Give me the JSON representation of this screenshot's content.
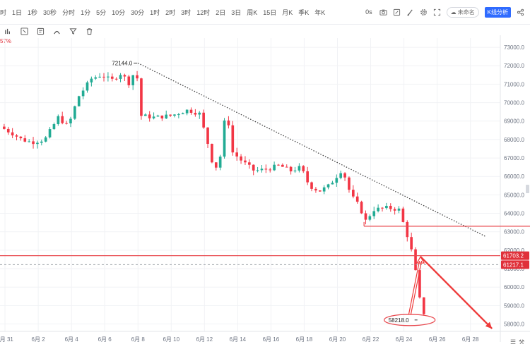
{
  "toolbar": {
    "intervals": [
      "时",
      "1日",
      "1秒",
      "30秒",
      "分时",
      "1分",
      "5分",
      "10分",
      "30分",
      "1时",
      "2时",
      "3时",
      "12时",
      "2日",
      "3日",
      "周K",
      "15日",
      "月K",
      "季K",
      "年K"
    ],
    "latency": "0s",
    "template_label": "未命名",
    "analysis_button": "K线分析",
    "icons": [
      "camera-icon",
      "edit-square-icon",
      "brush-icon",
      "gear-icon",
      "expand-icon"
    ]
  },
  "drawing_tools": {
    "icons": [
      "bars-icon",
      "ruler-icon",
      "note-icon",
      "magnet-icon",
      "filter-icon",
      "trash-icon"
    ]
  },
  "indicator_text": "57%",
  "chart_data": {
    "type": "candlestick",
    "y_axis": {
      "ticks": [
        73000,
        72000,
        71000,
        70000,
        69000,
        68000,
        67000,
        66000,
        65000,
        64000,
        63000,
        62000,
        61000,
        60000,
        59000,
        58000
      ],
      "tick_labels": [
        "73000.0",
        "72000.0",
        "71000.0",
        "70000.0",
        "69000.0",
        "68000.0",
        "67000.0",
        "66000.0",
        "65000.0",
        "64000.0",
        "63000.0",
        "62000.0",
        "61000.0",
        "60000.0",
        "59000.0",
        "58000.0"
      ],
      "range": [
        57600,
        73500
      ]
    },
    "x_axis": {
      "labels": [
        "5月 31",
        "6月 2",
        "6月 4",
        "6月 6",
        "6月 8",
        "6月 10",
        "6月 12",
        "6月 14",
        "6月 16",
        "6月 18",
        "6月 20",
        "6月 22",
        "6月 24",
        "6月 26",
        "6月 28"
      ],
      "range_days": [
        -0.3,
        29.8
      ]
    },
    "price_labels": {
      "high_marker": "72144.0",
      "low_marker": "58218.0",
      "resistance_tag": "61703.2",
      "current_tag": "61217.1"
    },
    "levels": {
      "resistance": 61703.2,
      "current": 61217.1,
      "support_box": 63300,
      "high": 72144.0,
      "low": 58218.0
    },
    "trendline": {
      "from": {
        "day": 8.0,
        "price": 72144
      },
      "to": {
        "day": 28.9,
        "price": 62750
      }
    },
    "arrows": {
      "up": {
        "from": {
          "day": 24.35,
          "price": 58500
        },
        "to": {
          "day": 25.0,
          "price": 61650
        }
      },
      "down": {
        "from": {
          "day": 25.0,
          "price": 61650
        },
        "to": {
          "day": 29.3,
          "price": 57750
        }
      }
    },
    "anchors": [
      [
        -0.3,
        68700
      ],
      [
        0.5,
        68300
      ],
      [
        1.0,
        68000
      ],
      [
        1.6,
        67850
      ],
      [
        2.4,
        68000
      ],
      [
        3.2,
        69200
      ],
      [
        3.8,
        68700
      ],
      [
        4.4,
        70300
      ],
      [
        5.2,
        71300
      ],
      [
        5.8,
        71500
      ],
      [
        6.4,
        71200
      ],
      [
        7.0,
        71600
      ],
      [
        7.5,
        71000
      ],
      [
        7.9,
        72000
      ],
      [
        8.1,
        69300
      ],
      [
        9.0,
        69200
      ],
      [
        10.0,
        69300
      ],
      [
        11.0,
        69600
      ],
      [
        11.7,
        69400
      ],
      [
        12.2,
        67800
      ],
      [
        12.6,
        66300
      ],
      [
        13.0,
        67200
      ],
      [
        13.3,
        69800
      ],
      [
        13.7,
        67300
      ],
      [
        14.3,
        66800
      ],
      [
        15.0,
        66300
      ],
      [
        15.8,
        66400
      ],
      [
        16.5,
        66600
      ],
      [
        17.2,
        66300
      ],
      [
        17.8,
        66500
      ],
      [
        18.3,
        65500
      ],
      [
        18.9,
        65200
      ],
      [
        19.5,
        65500
      ],
      [
        20.3,
        66400
      ],
      [
        20.8,
        65000
      ],
      [
        21.3,
        64400
      ],
      [
        21.7,
        63600
      ],
      [
        22.2,
        64200
      ],
      [
        23.0,
        64300
      ],
      [
        23.7,
        64200
      ],
      [
        24.2,
        62800
      ],
      [
        24.6,
        61500
      ],
      [
        24.9,
        59500
      ],
      [
        25.2,
        58600
      ],
      [
        25.4,
        61100
      ]
    ]
  },
  "colors": {
    "up": "#22ab94",
    "down": "#f23645",
    "resistance": "#e8494f",
    "grid": "#f1f2f5",
    "tag_red": "#e0313a",
    "arrow_red": "#ee3b3b",
    "accent": "#2f6bff"
  }
}
